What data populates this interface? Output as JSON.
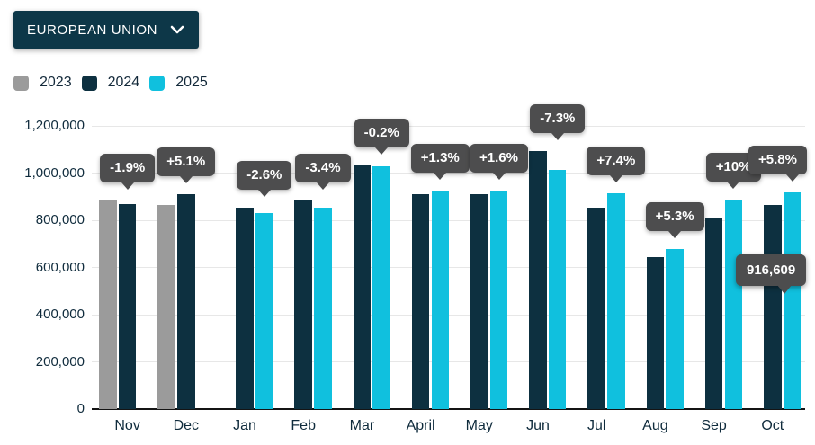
{
  "header": {
    "region_selector": {
      "label": "EUROPEAN UNION",
      "icon": "chevron-down-icon"
    }
  },
  "legend": [
    {
      "label": "2023",
      "color": "#9b9b9b"
    },
    {
      "label": "2024",
      "color": "#0d3040"
    },
    {
      "label": "2025",
      "color": "#10c0de"
    }
  ],
  "chart_data": {
    "type": "bar",
    "title": "",
    "xlabel": "",
    "ylabel": "",
    "categories": [
      "Nov",
      "Dec",
      "Jan",
      "Feb",
      "Mar",
      "April",
      "May",
      "Jun",
      "Jul",
      "Aug",
      "Sep",
      "Oct"
    ],
    "series": [
      {
        "name": "2023",
        "color": "#9b9b9b",
        "values": [
          885000,
          866000,
          null,
          null,
          null,
          null,
          null,
          null,
          null,
          null,
          null,
          null
        ]
      },
      {
        "name": "2024",
        "color": "#0d3040",
        "values": [
          868000,
          910000,
          854000,
          882000,
          1032000,
          912000,
          912000,
          1092000,
          852000,
          645000,
          808000,
          866000
        ]
      },
      {
        "name": "2025",
        "color": "#10c0de",
        "values": [
          null,
          null,
          832000,
          852000,
          1030000,
          924000,
          927000,
          1012000,
          915000,
          679000,
          889000,
          916609
        ]
      }
    ],
    "pct_labels": [
      "-1.9%",
      "+5.1%",
      "-2.6%",
      "-3.4%",
      "-0.2%",
      "+1.3%",
      "+1.6%",
      "-7.3%",
      "+7.4%",
      "+5.3%",
      "+10%",
      "+5.8%"
    ],
    "value_callout": {
      "text": "916,609",
      "month": "Oct",
      "series": "2025"
    },
    "ylim": [
      0,
      1200000
    ],
    "ytick_step": 200000,
    "yticks": [
      "0",
      "200,000",
      "400,000",
      "600,000",
      "800,000",
      "1,000,000",
      "1,200,000"
    ],
    "grid": true,
    "legend_position": "top-left",
    "tooltip_bg": "#4d4d4e",
    "gridline_color": "#e7e7e7",
    "axis_text_color": "#0f2b3c"
  }
}
